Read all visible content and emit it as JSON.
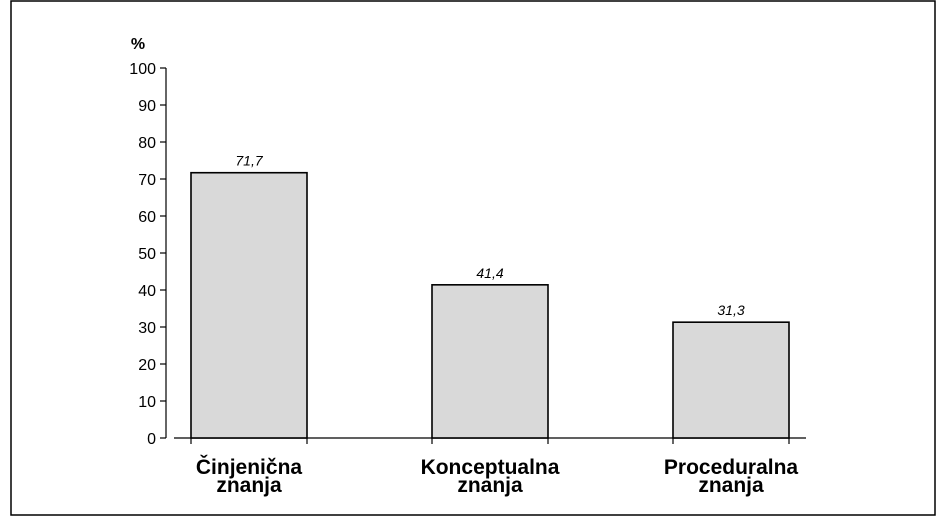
{
  "chart_data": {
    "type": "bar",
    "ylabel": "%",
    "ylim": [
      0,
      100
    ],
    "yticks": [
      0,
      10,
      20,
      30,
      40,
      50,
      60,
      70,
      80,
      90,
      100
    ],
    "categories": [
      [
        "Činjenična",
        "znanja"
      ],
      [
        "Konceptualna",
        "znanja"
      ],
      [
        "Proceduralna",
        "znanja"
      ]
    ],
    "values": [
      71.7,
      41.4,
      31.3
    ],
    "value_labels": [
      "71,7",
      "41,4",
      "31,3"
    ],
    "bar_color": "#d9d9d9",
    "grid": false,
    "legend": "none"
  }
}
